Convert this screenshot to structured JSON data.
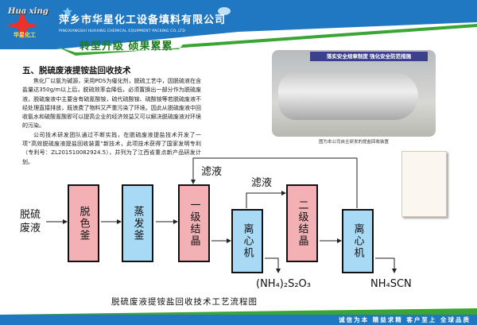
{
  "header": {
    "company_cn": "萍乡市华星化工设备填料有限公司",
    "company_en": "PINGXIANGSHI HUAXING CHEMICAL EQUIPMENT PACKING CO.,LTD",
    "logo_text": "Hua xing",
    "logo_sub": "华星化工",
    "slogan": "转型升级  硕果累累",
    "colors": {
      "blue": "#1f78c1",
      "green": "#3aa535"
    }
  },
  "article": {
    "title": "五、脱硫废液提铵盐回收技术",
    "paragraphs": [
      "焦化厂以氨为碱源，采用PDS为催化剂，脱硫工艺中，因脱硫液在含盐量达350g/m以上后，脱硫效率会降低，必须置换出一部分作为脱硫废液，脱硫废液中主要含有硫氰酸铵，硫代硫酸铵、硫酸铵等若脱硫废液不经处理直接排放，既浪费了物料又严重污染了环境。因此从脱硫废液中回收氨水和硫酸氰酸即可以提高企业的经济效益又可以解决脱硫废液对环境的污染。",
      "公司技术研发团队通过不断实践，在脱硫废液提盐技术开发了一项“高效脱硫废液提盐回收装置”新技术，此项技术获得了国家发明专利（专利号：ZL201510082924.5），并列为了江西省重点新产品研发计划。"
    ]
  },
  "photo": {
    "banner": "落实安全规章制度  强化安全防范措施",
    "caption": "图为本公司自主研发的提盐回收装置"
  },
  "flow": {
    "input": "脱硫废液",
    "boxes": [
      "脱色釜",
      "蒸发釜",
      "一级结晶",
      "离心机",
      "二级结晶",
      "离心机"
    ],
    "filtrate1": "滤液",
    "filtrate2": "滤液",
    "output1": "(NH₄)₂S₂O₃",
    "output2": "NH₄SCN",
    "caption": "脱硫废液提铵盐回收技术工艺流程图"
  },
  "footer": {
    "text": "诚信为本  精益求精  客户至上  全球品质"
  }
}
